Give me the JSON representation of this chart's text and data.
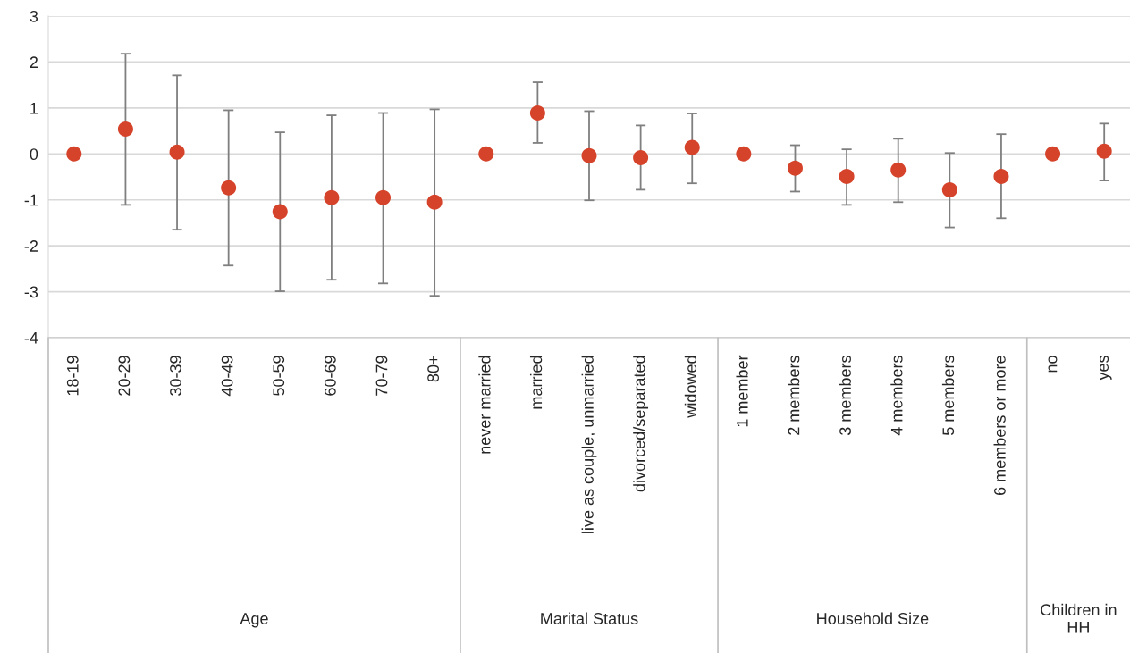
{
  "chart_data": {
    "type": "scatter",
    "categories": [
      "18-19",
      "20-29",
      "30-39",
      "40-49",
      "50-59",
      "60-69",
      "70-79",
      "80+",
      "never married",
      "married",
      "live as couple, unmarried",
      "divorced/separated",
      "widowed",
      "1 member",
      "2 members",
      "3 members",
      "4 members",
      "5 members",
      "6 members or more",
      "no",
      "yes"
    ],
    "values": [
      0,
      0.54,
      0.04,
      -0.74,
      -1.26,
      -0.95,
      -0.95,
      -1.05,
      0,
      0.89,
      -0.04,
      -0.08,
      0.14,
      0,
      -0.31,
      -0.49,
      -0.35,
      -0.78,
      -0.49,
      0,
      0.06
    ],
    "errors": [
      null,
      [
        -1.11,
        2.18
      ],
      [
        -1.65,
        1.71
      ],
      [
        -2.43,
        0.95
      ],
      [
        -2.99,
        0.47
      ],
      [
        -2.74,
        0.84
      ],
      [
        -2.82,
        0.89
      ],
      [
        -3.09,
        0.97
      ],
      null,
      [
        0.24,
        1.56
      ],
      [
        -1.01,
        0.93
      ],
      [
        -0.78,
        0.62
      ],
      [
        -0.64,
        0.88
      ],
      null,
      [
        -0.82,
        0.19
      ],
      [
        -1.11,
        0.1
      ],
      [
        -1.05,
        0.33
      ],
      [
        -1.6,
        0.02
      ],
      [
        -1.4,
        0.43
      ],
      null,
      [
        -0.58,
        0.66
      ]
    ],
    "color": "#d5432b",
    "ylim": [
      -4,
      3
    ],
    "yticks": [
      -4,
      -3,
      -2,
      -1,
      0,
      1,
      2,
      3
    ],
    "grid": "y",
    "marker": "circle",
    "annotations": [
      "Age",
      "Marital Status",
      "Household Size",
      "Children in HH"
    ]
  }
}
